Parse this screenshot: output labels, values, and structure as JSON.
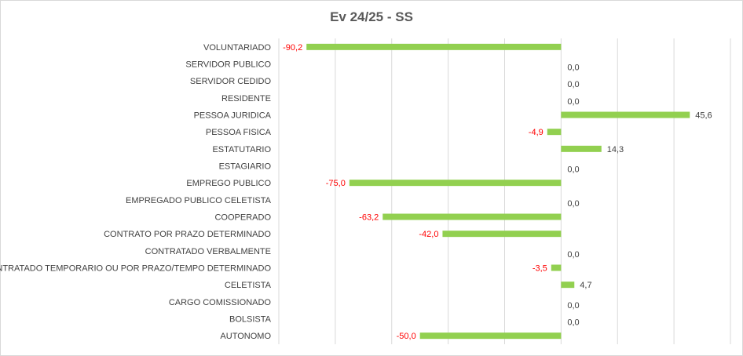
{
  "chart_data": {
    "type": "bar",
    "orientation": "horizontal",
    "title": "Ev 24/25 - SS",
    "categories": [
      "VOLUNTARIADO",
      "SERVIDOR PUBLICO",
      "SERVIDOR CEDIDO",
      "RESIDENTE",
      "PESSOA JURIDICA",
      "PESSOA FISICA",
      "ESTATUTARIO",
      "ESTAGIARIO",
      "EMPREGO PUBLICO",
      "EMPREGADO PUBLICO CELETISTA",
      "COOPERADO",
      "CONTRATO POR PRAZO DETERMINADO",
      "CONTRATADO VERBALMENTE",
      "CONTRATADO TEMPORARIO OU POR PRAZO/TEMPO DETERMINADO",
      "CELETISTA",
      "CARGO COMISSIONADO",
      "BOLSISTA",
      "AUTONOMO"
    ],
    "values": [
      -90.2,
      0.0,
      0.0,
      0.0,
      45.6,
      -4.9,
      14.3,
      0.0,
      -75.0,
      0.0,
      -63.2,
      -42.0,
      0.0,
      -3.5,
      4.7,
      0.0,
      0.0,
      -50.0
    ],
    "value_labels": [
      "-90,2",
      "0,0",
      "0,0",
      "0,0",
      "45,6",
      "-4,9",
      "14,3",
      "0,0",
      "-75,0",
      "0,0",
      "-63,2",
      "-42,0",
      "0,0",
      "-3,5",
      "4,7",
      "0,0",
      "0,0",
      "-50,0"
    ],
    "xlim": [
      -100,
      60
    ],
    "grid": true,
    "colors": {
      "bar": "#92d050",
      "negative_label": "#ff0000",
      "positive_label": "#404040",
      "grid": "#d9d9d9"
    }
  }
}
